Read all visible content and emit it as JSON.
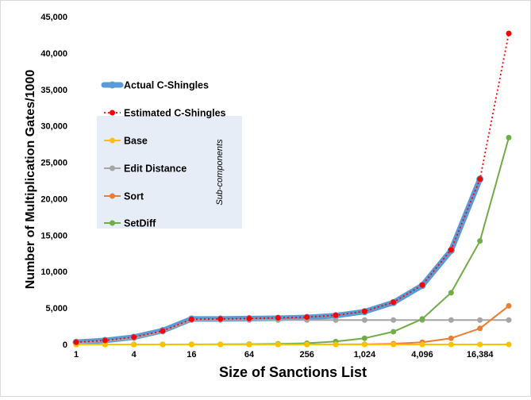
{
  "chart_data": {
    "type": "line",
    "xlabel": "Size of Sanctions List",
    "ylabel": "Number of Multiplication Gates/1000",
    "x_scale": "log2",
    "x": [
      1,
      2,
      4,
      8,
      16,
      32,
      64,
      128,
      256,
      512,
      1024,
      2048,
      4096,
      8192,
      16384,
      32768
    ],
    "x_tick_labels": [
      "1",
      "4",
      "16",
      "64",
      "256",
      "1,024",
      "4,096",
      "16,384"
    ],
    "x_tick_values": [
      1,
      4,
      16,
      64,
      256,
      1024,
      4096,
      16384
    ],
    "ylim": [
      0,
      45000
    ],
    "y_tick_values": [
      0,
      5000,
      10000,
      15000,
      20000,
      25000,
      30000,
      35000,
      40000,
      45000
    ],
    "y_tick_labels": [
      "0",
      "5,000",
      "10,000",
      "15,000",
      "20,000",
      "25,000",
      "30,000",
      "35,000",
      "40,000",
      "45,000"
    ],
    "grid": false,
    "legend_placement": "left",
    "annotation": "Sub-components",
    "series": [
      {
        "name": "Actual C-Shingles",
        "color": "#5b9bd5",
        "style": "thick",
        "x": [
          1,
          2,
          4,
          8,
          16,
          32,
          64,
          128,
          256,
          512,
          1024,
          2048,
          4096,
          8192,
          16384
        ],
        "values": [
          300,
          550,
          1000,
          1900,
          3500,
          3500,
          3550,
          3600,
          3700,
          3950,
          4500,
          5750,
          8100,
          12900,
          22700
        ]
      },
      {
        "name": "Estimated C-Shingles",
        "color": "#ff0000",
        "style": "dotted",
        "values": [
          300,
          550,
          1000,
          1850,
          3450,
          3500,
          3550,
          3650,
          3750,
          4000,
          4550,
          5800,
          8150,
          13000,
          22700,
          42700
        ]
      },
      {
        "name": "Base",
        "color": "#ffc000",
        "style": "line",
        "values": [
          0,
          0,
          0,
          0,
          0,
          0,
          0,
          0,
          0,
          0,
          0,
          0,
          0,
          0,
          0,
          0
        ]
      },
      {
        "name": "Edit Distance",
        "color": "#a5a5a5",
        "style": "line",
        "values": [
          200,
          450,
          850,
          1750,
          3350,
          3350,
          3350,
          3350,
          3350,
          3350,
          3350,
          3350,
          3350,
          3350,
          3350,
          3350
        ]
      },
      {
        "name": "Sort",
        "color": "#ed7d31",
        "style": "line",
        "values": [
          0,
          0,
          0,
          0,
          0,
          0,
          0,
          0,
          0,
          10,
          30,
          100,
          300,
          850,
          2200,
          5300
        ]
      },
      {
        "name": "SetDiff",
        "color": "#70ad47",
        "style": "line",
        "values": [
          0,
          0,
          0,
          0,
          10,
          20,
          40,
          80,
          160,
          400,
          850,
          1750,
          3500,
          7100,
          14200,
          28400
        ]
      }
    ]
  }
}
